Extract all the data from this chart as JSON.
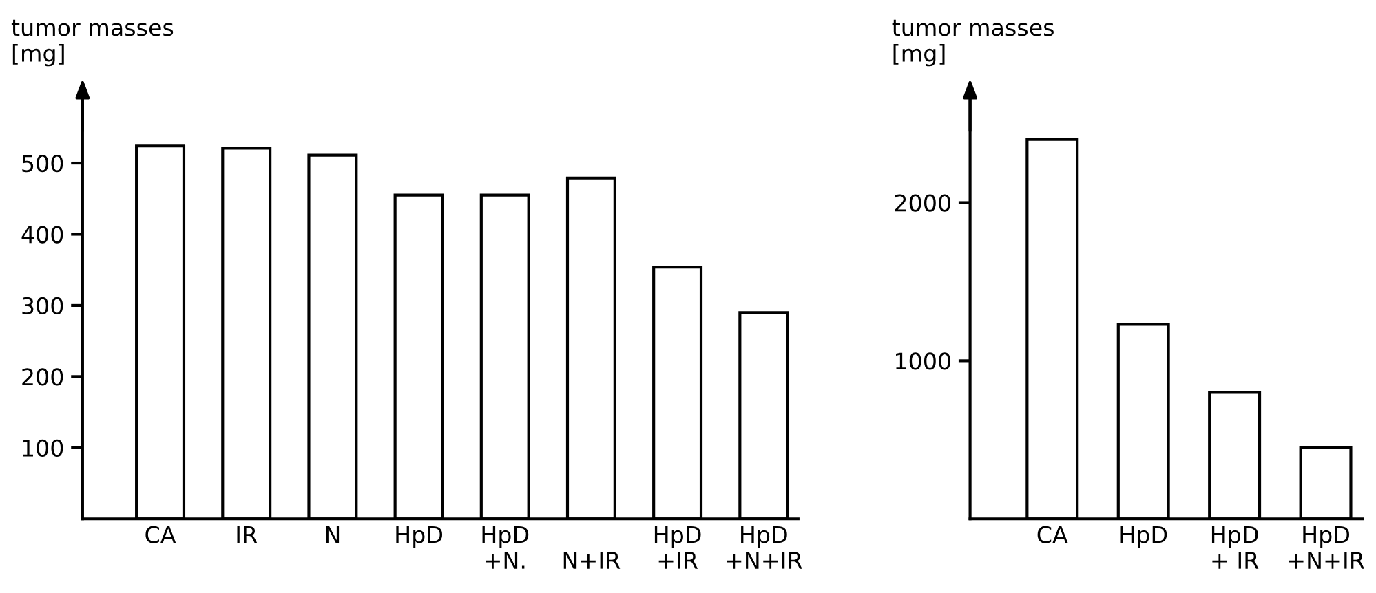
{
  "chart_data": [
    {
      "type": "bar",
      "ylabel": "tumor masses\n[mg]",
      "categories": [
        "CA",
        "IR",
        "N",
        "HpD",
        "HpD\n+N.",
        "\nN+IR",
        "HpD\n+IR",
        "HpD\n+N+IR"
      ],
      "values": [
        524,
        521,
        511,
        455,
        455,
        479,
        354,
        290
      ],
      "color": "#ffffff",
      "ylim": [
        0,
        600
      ],
      "yticks": [
        100,
        200,
        300,
        400,
        500
      ],
      "grid": false,
      "legend": false
    },
    {
      "type": "bar",
      "ylabel": "tumor masses\n[mg]",
      "categories": [
        "CA",
        "HpD",
        "HpD\n+ IR",
        "HpD\n+N+IR"
      ],
      "values": [
        2400,
        1230,
        800,
        450
      ],
      "color": "#ffffff",
      "ylim": [
        0,
        2700
      ],
      "yticks": [
        1000,
        2000
      ],
      "grid": false,
      "legend": false
    }
  ]
}
